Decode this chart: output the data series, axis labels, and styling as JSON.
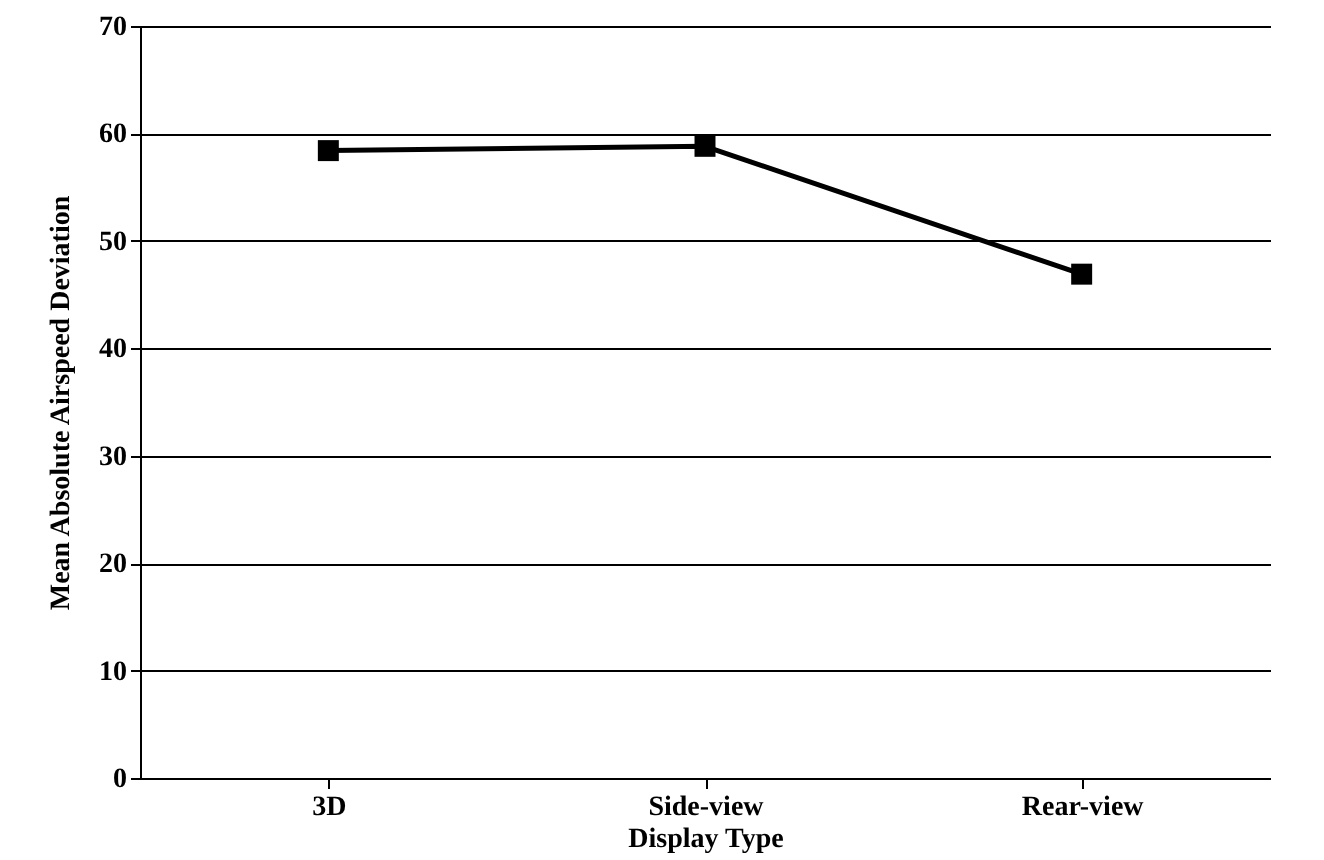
{
  "chart_data": {
    "type": "line",
    "xlabel": "Display Type",
    "ylabel": "Mean Absolute Airspeed Deviation",
    "categories": [
      "3D",
      "Side-view",
      "Rear-view"
    ],
    "series": [
      {
        "color": "#000000",
        "values": [
          58.4,
          58.8,
          46.9
        ]
      }
    ],
    "ylim": [
      0,
      70
    ],
    "yticks": [
      0,
      10,
      20,
      30,
      40,
      50,
      60,
      70
    ],
    "grid": "y",
    "marker": "square",
    "line_style": "solid"
  }
}
